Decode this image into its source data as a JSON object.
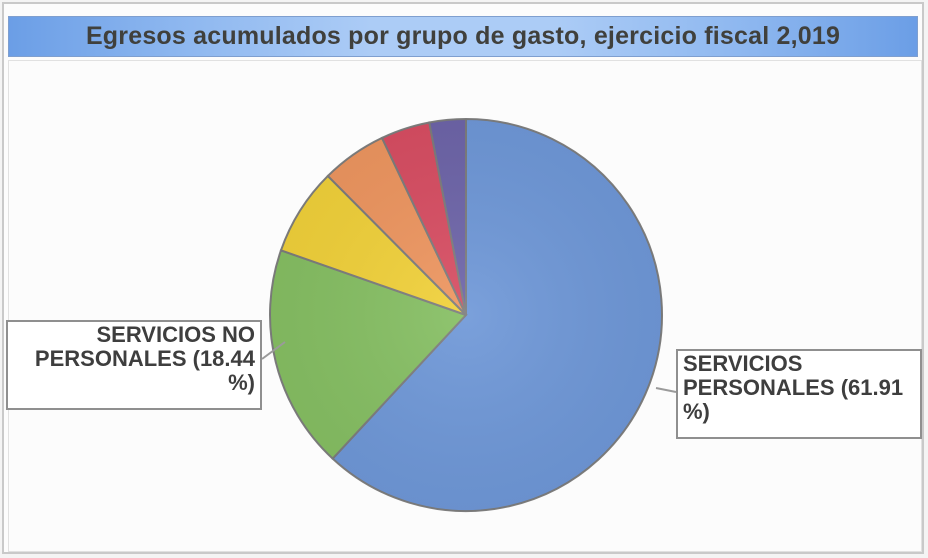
{
  "chart_data": {
    "type": "pie",
    "title": "Egresos acumulados por grupo de gasto, ejercicio fiscal 2,019",
    "slices": [
      {
        "name": "SERVICIOS PERSONALES",
        "value": 61.91,
        "color": "#6f98d8",
        "label": "SERVICIOS PERSONALES (61.91 %)"
      },
      {
        "name": "SERVICIOS NO PERSONALES",
        "value": 18.44,
        "color": "#86bf63",
        "label": "SERVICIOS NO PERSONALES (18.44 %)"
      },
      {
        "name": "",
        "value": 7.2,
        "color": "#f1d13a",
        "label": ""
      },
      {
        "name": "",
        "value": 5.4,
        "color": "#ee9660",
        "label": ""
      },
      {
        "name": "",
        "value": 4.05,
        "color": "#d84e63",
        "label": ""
      },
      {
        "name": "",
        "value": 3.0,
        "color": "#6e65a9",
        "label": ""
      }
    ]
  }
}
